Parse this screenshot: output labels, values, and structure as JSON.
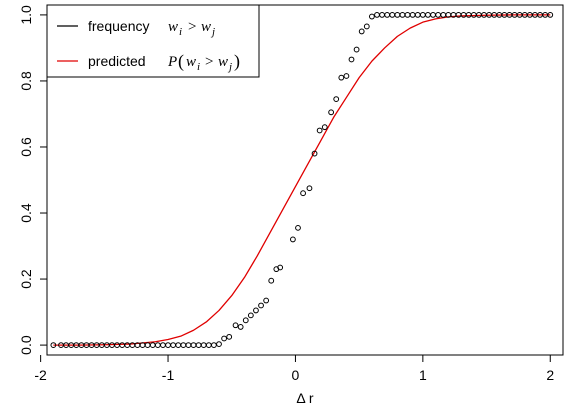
{
  "chart_data": {
    "type": "scatter",
    "xlabel": "Δ r",
    "xlim": [
      -1.95,
      2.1
    ],
    "ylim": [
      -0.03,
      1.03
    ],
    "x_ticks": [
      -2,
      -1,
      0,
      1,
      2
    ],
    "y_ticks": [
      0.0,
      0.2,
      0.4,
      0.6,
      0.8,
      1.0
    ],
    "x_tick_labels": [
      "-2",
      "-1",
      "0",
      "1",
      "2"
    ],
    "y_tick_labels": [
      "0.0",
      "0.2",
      "0.4",
      "0.6",
      "0.8",
      "1.0"
    ],
    "legend_position": "top-left",
    "frequency_series": {
      "legend_label": "frequency",
      "legend_math": "w_i > w_j",
      "color": "#000000",
      "points": [
        [
          -1.9,
          0.0
        ],
        [
          -1.84,
          0.0
        ],
        [
          -1.8,
          0.0
        ],
        [
          -1.76,
          0.0
        ],
        [
          -1.72,
          0.0
        ],
        [
          -1.68,
          0.0
        ],
        [
          -1.64,
          0.0
        ],
        [
          -1.6,
          0.0
        ],
        [
          -1.56,
          0.0
        ],
        [
          -1.52,
          0.0
        ],
        [
          -1.48,
          0.0
        ],
        [
          -1.44,
          0.0
        ],
        [
          -1.4,
          0.0
        ],
        [
          -1.36,
          0.0
        ],
        [
          -1.32,
          0.0
        ],
        [
          -1.28,
          0.0
        ],
        [
          -1.24,
          0.0
        ],
        [
          -1.2,
          0.0
        ],
        [
          -1.16,
          0.0
        ],
        [
          -1.12,
          0.0
        ],
        [
          -1.08,
          0.0
        ],
        [
          -1.04,
          0.0
        ],
        [
          -1.0,
          0.0
        ],
        [
          -0.96,
          0.0
        ],
        [
          -0.92,
          0.0
        ],
        [
          -0.88,
          0.0
        ],
        [
          -0.84,
          0.0
        ],
        [
          -0.8,
          0.0
        ],
        [
          -0.76,
          0.0
        ],
        [
          -0.72,
          0.0
        ],
        [
          -0.68,
          0.0
        ],
        [
          -0.64,
          0.0
        ],
        [
          -0.6,
          0.003
        ],
        [
          -0.56,
          0.02
        ],
        [
          -0.52,
          0.025
        ],
        [
          -0.47,
          0.06
        ],
        [
          -0.43,
          0.055
        ],
        [
          -0.39,
          0.075
        ],
        [
          -0.35,
          0.09
        ],
        [
          -0.31,
          0.105
        ],
        [
          -0.27,
          0.12
        ],
        [
          -0.23,
          0.135
        ],
        [
          -0.19,
          0.195
        ],
        [
          -0.15,
          0.23
        ],
        [
          -0.12,
          0.235
        ],
        [
          -0.02,
          0.32
        ],
        [
          0.02,
          0.355
        ],
        [
          0.06,
          0.46
        ],
        [
          0.11,
          0.475
        ],
        [
          0.15,
          0.58
        ],
        [
          0.19,
          0.65
        ],
        [
          0.23,
          0.66
        ],
        [
          0.28,
          0.705
        ],
        [
          0.32,
          0.745
        ],
        [
          0.36,
          0.81
        ],
        [
          0.4,
          0.815
        ],
        [
          0.44,
          0.865
        ],
        [
          0.48,
          0.895
        ],
        [
          0.52,
          0.95
        ],
        [
          0.56,
          0.965
        ],
        [
          0.6,
          0.995
        ],
        [
          0.64,
          1.0
        ],
        [
          0.68,
          1.0
        ],
        [
          0.72,
          1.0
        ],
        [
          0.76,
          1.0
        ],
        [
          0.8,
          1.0
        ],
        [
          0.84,
          1.0
        ],
        [
          0.88,
          1.0
        ],
        [
          0.92,
          1.0
        ],
        [
          0.96,
          1.0
        ],
        [
          1.0,
          1.0
        ],
        [
          1.04,
          1.0
        ],
        [
          1.08,
          1.0
        ],
        [
          1.12,
          1.0
        ],
        [
          1.16,
          1.0
        ],
        [
          1.2,
          1.0
        ],
        [
          1.24,
          1.0
        ],
        [
          1.28,
          1.0
        ],
        [
          1.32,
          1.0
        ],
        [
          1.36,
          1.0
        ],
        [
          1.4,
          1.0
        ],
        [
          1.44,
          1.0
        ],
        [
          1.48,
          1.0
        ],
        [
          1.52,
          1.0
        ],
        [
          1.56,
          1.0
        ],
        [
          1.6,
          1.0
        ],
        [
          1.64,
          1.0
        ],
        [
          1.68,
          1.0
        ],
        [
          1.72,
          1.0
        ],
        [
          1.76,
          1.0
        ],
        [
          1.8,
          1.0
        ],
        [
          1.84,
          1.0
        ],
        [
          1.88,
          1.0
        ],
        [
          1.92,
          1.0
        ],
        [
          1.96,
          1.0
        ],
        [
          2.0,
          1.0
        ]
      ]
    },
    "predicted_series": {
      "legend_label": "predicted",
      "legend_math": "P(w_i > w_j)",
      "color": "#e00000",
      "points": [
        [
          -1.9,
          0.0
        ],
        [
          -1.7,
          0.0
        ],
        [
          -1.5,
          0.001
        ],
        [
          -1.3,
          0.003
        ],
        [
          -1.1,
          0.01
        ],
        [
          -1.0,
          0.017
        ],
        [
          -0.9,
          0.027
        ],
        [
          -0.8,
          0.045
        ],
        [
          -0.7,
          0.07
        ],
        [
          -0.6,
          0.105
        ],
        [
          -0.5,
          0.15
        ],
        [
          -0.4,
          0.205
        ],
        [
          -0.3,
          0.27
        ],
        [
          -0.2,
          0.34
        ],
        [
          -0.1,
          0.41
        ],
        [
          0.0,
          0.48
        ],
        [
          0.1,
          0.55
        ],
        [
          0.2,
          0.62
        ],
        [
          0.3,
          0.69
        ],
        [
          0.4,
          0.75
        ],
        [
          0.5,
          0.81
        ],
        [
          0.6,
          0.86
        ],
        [
          0.7,
          0.9
        ],
        [
          0.8,
          0.935
        ],
        [
          0.9,
          0.96
        ],
        [
          1.0,
          0.978
        ],
        [
          1.1,
          0.988
        ],
        [
          1.2,
          0.994
        ],
        [
          1.3,
          0.997
        ],
        [
          1.5,
          0.999
        ],
        [
          1.7,
          1.0
        ],
        [
          2.0,
          1.0
        ]
      ]
    }
  }
}
